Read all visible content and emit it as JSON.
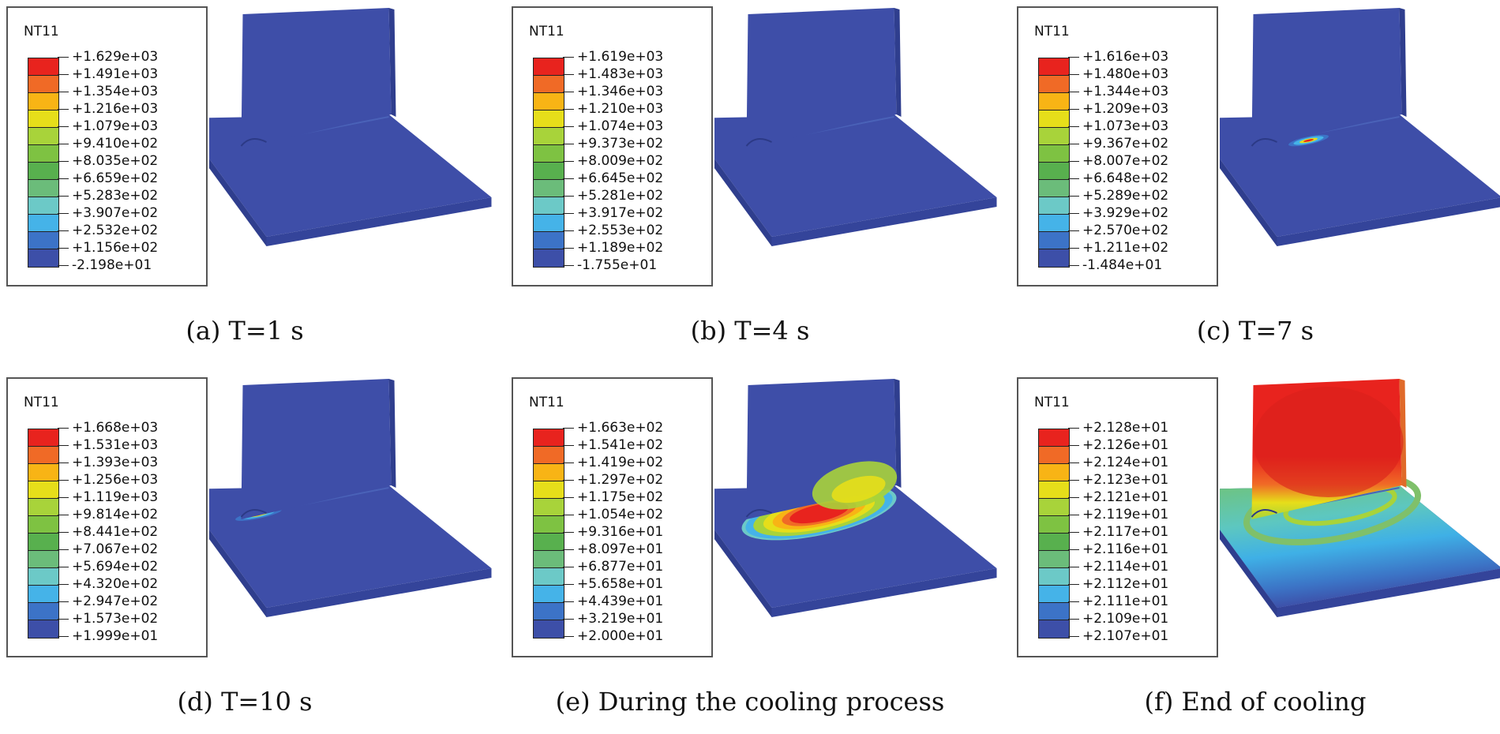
{
  "colors": {
    "ramp": [
      "#e8231e",
      "#f06a26",
      "#f8b415",
      "#e6de1a",
      "#a8d33a",
      "#7ec242",
      "#58b04e",
      "#6bbc7a",
      "#6cc9c7",
      "#45b3e8",
      "#3c73c7",
      "#3d4fa8"
    ],
    "plate": "#3e4ea8",
    "plate_side": "#2f3e8e",
    "plate_front": "#34449a"
  },
  "panels": [
    {
      "caption": "(a) T=1 s",
      "legend_title": "NT11",
      "legend_values": [
        "+1.629e+03",
        "+1.491e+03",
        "+1.354e+03",
        "+1.216e+03",
        "+1.079e+03",
        "+9.410e+02",
        "+8.035e+02",
        "+6.659e+02",
        "+5.283e+02",
        "+3.907e+02",
        "+2.532e+02",
        "+1.156e+02",
        "-2.198e+01"
      ],
      "heat_state": "spot-start"
    },
    {
      "caption": "(b) T=4 s",
      "legend_title": "NT11",
      "legend_values": [
        "+1.619e+03",
        "+1.483e+03",
        "+1.346e+03",
        "+1.210e+03",
        "+1.074e+03",
        "+9.373e+02",
        "+8.009e+02",
        "+6.645e+02",
        "+5.281e+02",
        "+3.917e+02",
        "+2.553e+02",
        "+1.189e+02",
        "-1.755e+01"
      ],
      "heat_state": "spot-early"
    },
    {
      "caption": "(c) T=7 s",
      "legend_title": "NT11",
      "legend_values": [
        "+1.616e+03",
        "+1.480e+03",
        "+1.344e+03",
        "+1.209e+03",
        "+1.073e+03",
        "+9.367e+02",
        "+8.007e+02",
        "+6.648e+02",
        "+5.289e+02",
        "+3.929e+02",
        "+2.570e+02",
        "+1.211e+02",
        "-1.484e+01"
      ],
      "heat_state": "spot-mid"
    },
    {
      "caption": "(d) T=10 s",
      "legend_title": "NT11",
      "legend_values": [
        "+1.668e+03",
        "+1.531e+03",
        "+1.393e+03",
        "+1.256e+03",
        "+1.119e+03",
        "+9.814e+02",
        "+8.441e+02",
        "+7.067e+02",
        "+5.694e+02",
        "+4.320e+02",
        "+2.947e+02",
        "+1.573e+02",
        "+1.999e+01"
      ],
      "heat_state": "spot-end"
    },
    {
      "caption": "(e) During the cooling process",
      "legend_title": "NT11",
      "legend_values": [
        "+1.663e+02",
        "+1.541e+02",
        "+1.419e+02",
        "+1.297e+02",
        "+1.175e+02",
        "+1.054e+02",
        "+9.316e+01",
        "+8.097e+01",
        "+6.877e+01",
        "+5.658e+01",
        "+4.439e+01",
        "+3.219e+01",
        "+2.000e+01"
      ],
      "heat_state": "cooling"
    },
    {
      "caption": "(f) End of cooling",
      "legend_title": "NT11",
      "legend_values": [
        "+2.128e+01",
        "+2.126e+01",
        "+2.124e+01",
        "+2.123e+01",
        "+2.121e+01",
        "+2.119e+01",
        "+2.117e+01",
        "+2.116e+01",
        "+2.114e+01",
        "+2.112e+01",
        "+2.111e+01",
        "+2.109e+01",
        "+2.107e+01"
      ],
      "heat_state": "end"
    }
  ]
}
